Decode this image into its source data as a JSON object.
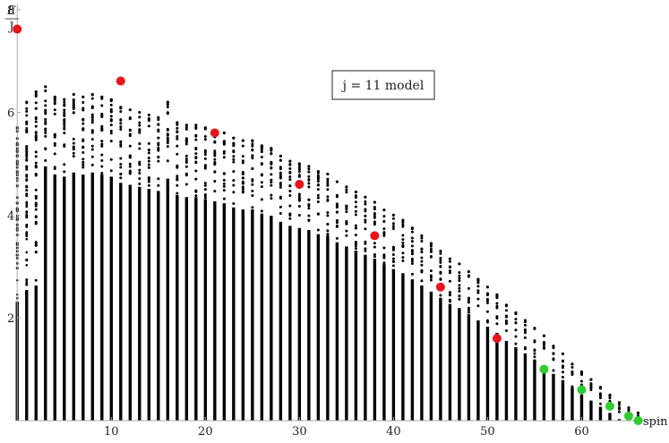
{
  "chart_data": {
    "type": "scatter",
    "title": "",
    "xlabel": "spin",
    "ylabel_num": "E",
    "ylabel_den": "J",
    "xlim": [
      -0.5,
      69
    ],
    "ylim": [
      0,
      8.1
    ],
    "x_ticks": [
      10,
      20,
      30,
      40,
      50,
      60
    ],
    "x_tick_labels": [
      "10",
      "20",
      "30",
      "40",
      "50",
      "60"
    ],
    "y_ticks": [
      2,
      4,
      6,
      8
    ],
    "y_tick_labels": [
      "2",
      "4",
      "6",
      "8"
    ],
    "grid": false,
    "annotation": "j = 11 model",
    "colors": {
      "spectrum": "#000000",
      "red": "#e8141b",
      "green": "#2ecc2e",
      "axis": "#aaaaaa"
    },
    "spectrum_max_energy": [
      5.7,
      6.2,
      6.4,
      6.5,
      6.3,
      6.25,
      6.35,
      6.3,
      6.35,
      6.3,
      6.25,
      6.1,
      6.05,
      6.0,
      5.95,
      5.9,
      6.2,
      5.8,
      5.75,
      5.75,
      5.7,
      5.65,
      5.6,
      5.5,
      5.45,
      5.45,
      5.35,
      5.3,
      5.15,
      5.05,
      5.0,
      4.95,
      4.85,
      4.8,
      4.65,
      4.55,
      4.45,
      4.35,
      4.25,
      4.1,
      4.0,
      3.9,
      3.75,
      3.6,
      3.45,
      3.3,
      3.15,
      3.05,
      2.9,
      2.75,
      2.6,
      2.45,
      2.25,
      2.1,
      1.95,
      1.8,
      1.65,
      1.45,
      1.3,
      1.1,
      0.95,
      0.8,
      0.65,
      0.5,
      0.35,
      0.25,
      0.15
    ],
    "red_points": {
      "x": [
        0,
        11,
        21,
        30,
        38,
        45,
        51
      ],
      "y": [
        7.62,
        6.61,
        5.6,
        4.6,
        3.6,
        2.6,
        1.6
      ]
    },
    "green_points": {
      "x": [
        56,
        60,
        63,
        65,
        66
      ],
      "y": [
        1.0,
        0.6,
        0.28,
        0.09,
        0.0
      ]
    }
  }
}
